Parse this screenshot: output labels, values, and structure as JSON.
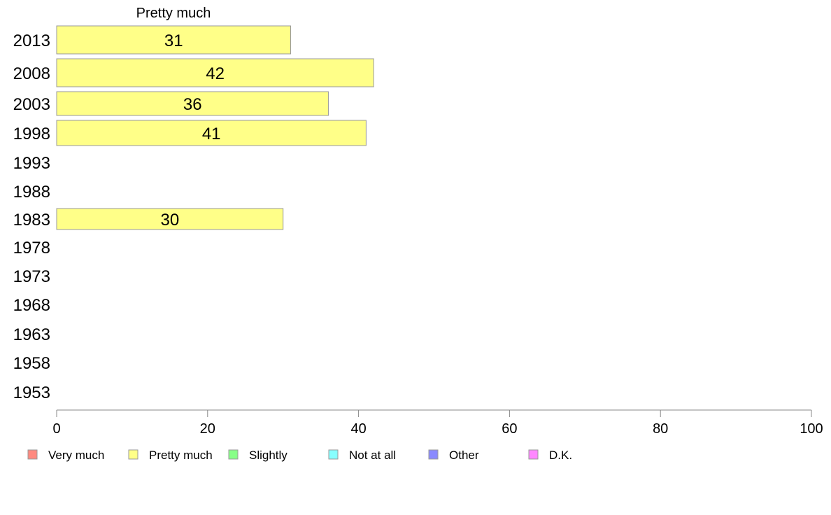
{
  "chart_data": {
    "type": "bar",
    "orientation": "horizontal",
    "title": "Pretty much",
    "categories": [
      "2013",
      "2008",
      "2003",
      "1998",
      "1993",
      "1988",
      "1983",
      "1978",
      "1973",
      "1968",
      "1963",
      "1958",
      "1953"
    ],
    "series": [
      {
        "name": "Pretty much",
        "values": [
          31,
          42,
          36,
          41,
          null,
          null,
          30,
          null,
          null,
          null,
          null,
          null,
          null
        ],
        "color": "#ffff88"
      }
    ],
    "xlim": [
      0,
      100
    ],
    "xticks": [
      0,
      20,
      40,
      60,
      80,
      100
    ],
    "grid": false,
    "legend_position": "bottom",
    "legend": [
      {
        "label": "Very much",
        "color": "#ff8a80"
      },
      {
        "label": "Pretty much",
        "color": "#ffff88"
      },
      {
        "label": "Slightly",
        "color": "#88ff88"
      },
      {
        "label": "Not at all",
        "color": "#88ffff"
      },
      {
        "label": "Other",
        "color": "#8a8aff"
      },
      {
        "label": "D.K.",
        "color": "#ff88ff"
      }
    ]
  }
}
